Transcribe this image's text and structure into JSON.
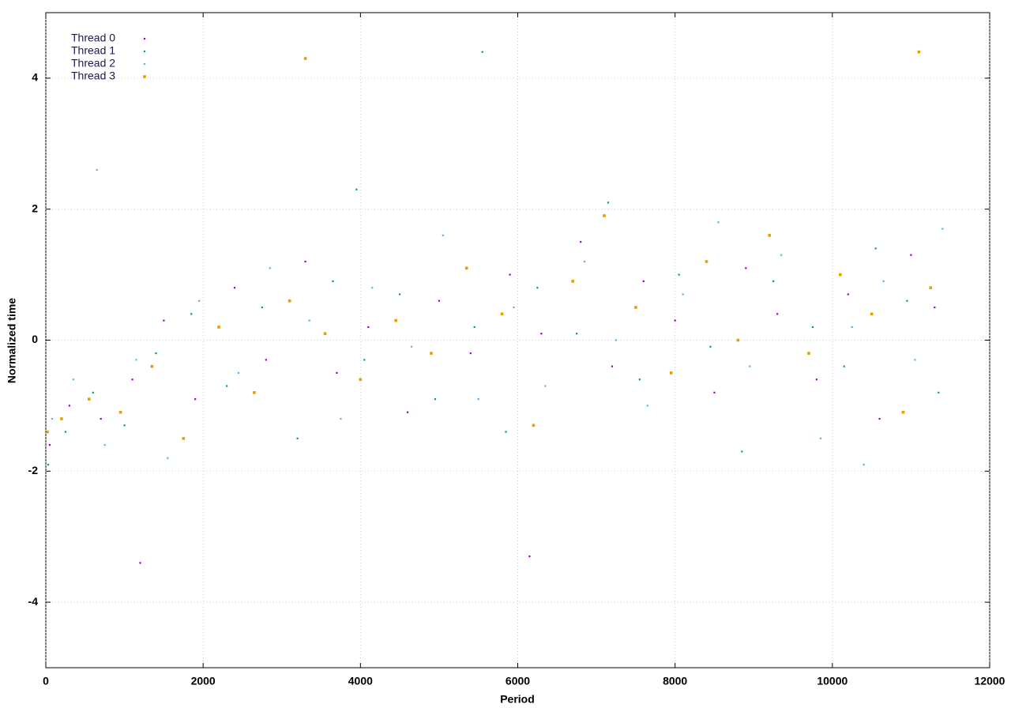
{
  "chart_data": {
    "type": "scatter",
    "xlabel": "Period",
    "ylabel": "Normalized time",
    "xlim": [
      0,
      12000
    ],
    "ylim": [
      -5,
      5
    ],
    "xticks": [
      0,
      2000,
      4000,
      6000,
      8000,
      10000,
      12000
    ],
    "yticks": [
      -4,
      -2,
      0,
      2,
      4
    ],
    "grid": true,
    "legend": "upper left",
    "series": [
      {
        "name": "Thread 0",
        "color": "#9400d3",
        "x": [
          50,
          300,
          700,
          1100,
          1500,
          1900,
          2400,
          2800,
          3300,
          3700,
          4100,
          4600,
          5000,
          5400,
          5900,
          6300,
          6800,
          7200,
          7600,
          8000,
          8500,
          8900,
          9300,
          9800,
          10200,
          10600,
          11000,
          11300,
          1200,
          6150
        ],
        "values": [
          -1.6,
          -1.0,
          -1.2,
          -0.6,
          0.3,
          -0.9,
          0.8,
          -0.3,
          1.2,
          -0.5,
          0.2,
          -1.1,
          0.6,
          -0.2,
          1.0,
          0.1,
          1.5,
          -0.4,
          0.9,
          0.3,
          -0.8,
          1.1,
          0.4,
          -0.6,
          0.7,
          -1.2,
          1.3,
          0.5,
          -3.4,
          -3.3
        ]
      },
      {
        "name": "Thread 1",
        "color": "#009e73",
        "x": [
          30,
          250,
          600,
          1000,
          1400,
          1850,
          2300,
          2750,
          3200,
          3650,
          4050,
          4500,
          4950,
          5450,
          5850,
          6250,
          6750,
          7150,
          7550,
          8050,
          8450,
          8850,
          9250,
          9750,
          10150,
          10550,
          10950,
          11350,
          5550,
          3950
        ],
        "values": [
          -1.9,
          -1.4,
          -0.8,
          -1.3,
          -0.2,
          0.4,
          -0.7,
          0.5,
          -1.5,
          0.9,
          -0.3,
          0.7,
          -0.9,
          0.2,
          -1.4,
          0.8,
          0.1,
          2.1,
          -0.6,
          1.0,
          -0.1,
          -1.7,
          0.9,
          0.2,
          -0.4,
          1.4,
          0.6,
          -0.8,
          4.4,
          2.3
        ]
      },
      {
        "name": "Thread 2",
        "color": "#56b4e9",
        "x": [
          80,
          350,
          750,
          1150,
          1550,
          1950,
          2450,
          2850,
          3350,
          3750,
          4150,
          4650,
          5050,
          5500,
          5950,
          6350,
          6850,
          7250,
          7650,
          8100,
          8550,
          8950,
          9350,
          9850,
          10250,
          10650,
          11050,
          11400,
          650,
          10400
        ],
        "values": [
          -1.2,
          -0.6,
          -1.6,
          -0.3,
          -1.8,
          0.6,
          -0.5,
          1.1,
          0.3,
          -1.2,
          0.8,
          -0.1,
          1.6,
          -0.9,
          0.5,
          -0.7,
          1.2,
          0.0,
          -1.0,
          0.7,
          1.8,
          -0.4,
          1.3,
          -1.5,
          0.2,
          0.9,
          -0.3,
          1.7,
          2.6,
          -1.9
        ]
      },
      {
        "name": "Thread 3",
        "color": "#e69f00",
        "x": [
          20,
          200,
          550,
          950,
          1350,
          1750,
          2200,
          2650,
          3100,
          3550,
          4000,
          4450,
          4900,
          5350,
          5800,
          6200,
          6700,
          7100,
          7500,
          7950,
          8400,
          8800,
          9200,
          9700,
          10100,
          10500,
          10900,
          11250,
          3300,
          11100
        ],
        "values": [
          -1.4,
          -1.2,
          -0.9,
          -1.1,
          -0.4,
          -1.5,
          0.2,
          -0.8,
          0.6,
          0.1,
          -0.6,
          0.3,
          -0.2,
          1.1,
          0.4,
          -1.3,
          0.9,
          1.9,
          0.5,
          -0.5,
          1.2,
          0.0,
          1.6,
          -0.2,
          1.0,
          0.4,
          -1.1,
          0.8,
          4.3,
          4.4
        ]
      }
    ]
  }
}
